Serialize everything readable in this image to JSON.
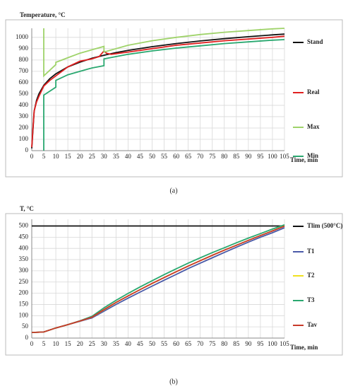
{
  "chart_data": [
    {
      "type": "line",
      "caption": "(a)",
      "y_label": "Temperature, °C",
      "x_label": "Time, min",
      "xlim": [
        0,
        105
      ],
      "xticks": [
        0,
        5,
        10,
        15,
        20,
        25,
        30,
        35,
        40,
        45,
        50,
        55,
        60,
        65,
        70,
        75,
        80,
        85,
        90,
        95,
        100,
        105
      ],
      "ylim": [
        0,
        1080
      ],
      "yticks": [
        0,
        100,
        200,
        300,
        400,
        500,
        600,
        700,
        800,
        900,
        1000
      ],
      "grid": true,
      "legend": "right",
      "series": [
        {
          "name": "Stand",
          "color": "#111111",
          "x": [
            0,
            1,
            2,
            3,
            5,
            7.5,
            10,
            15,
            20,
            25,
            30,
            35,
            40,
            50,
            60,
            70,
            80,
            90,
            100,
            105
          ],
          "values": [
            20,
            349,
            445,
            502,
            576,
            636,
            678,
            739,
            781,
            815,
            842,
            865,
            885,
            918,
            945,
            968,
            988,
            1006,
            1022,
            1029
          ]
        },
        {
          "name": "Real",
          "color": "#e02020",
          "x": [
            0,
            0.5,
            1,
            2,
            3,
            5,
            7.5,
            10,
            15,
            20,
            25,
            28,
            30,
            31,
            33,
            40,
            50,
            60,
            70,
            80,
            90,
            100,
            105
          ],
          "values": [
            30,
            200,
            350,
            430,
            480,
            570,
            620,
            660,
            740,
            790,
            810,
            830,
            880,
            860,
            850,
            870,
            900,
            930,
            950,
            970,
            985,
            1000,
            1010
          ]
        },
        {
          "name": "Max",
          "color": "#9fd36a",
          "x": [
            5,
            5,
            10,
            10,
            15,
            20,
            25,
            30,
            30,
            40,
            50,
            60,
            70,
            80,
            90,
            100,
            105
          ],
          "values": [
            1080,
            660,
            760,
            780,
            820,
            860,
            890,
            920,
            870,
            930,
            970,
            1000,
            1025,
            1045,
            1060,
            1075,
            1080
          ]
        },
        {
          "name": "Min",
          "color": "#2aa870",
          "x": [
            5,
            5,
            10,
            10,
            15,
            20,
            25,
            30,
            30,
            40,
            50,
            60,
            70,
            80,
            90,
            100,
            105
          ],
          "values": [
            0,
            490,
            560,
            620,
            670,
            700,
            730,
            750,
            810,
            850,
            880,
            905,
            925,
            945,
            960,
            975,
            980
          ]
        }
      ]
    },
    {
      "type": "line",
      "caption": "(b)",
      "y_label": "T, °C",
      "x_label": "Time, min",
      "xlim": [
        0,
        105
      ],
      "xticks": [
        0,
        5,
        10,
        15,
        20,
        25,
        30,
        35,
        40,
        45,
        50,
        55,
        60,
        65,
        70,
        75,
        80,
        85,
        90,
        95,
        100,
        105
      ],
      "ylim": [
        0,
        530
      ],
      "yticks": [
        0,
        50,
        100,
        150,
        200,
        250,
        300,
        350,
        400,
        450,
        500
      ],
      "grid": true,
      "legend": "right",
      "series": [
        {
          "name": "Tlim (500°C)",
          "color": "#111111",
          "x": [
            0,
            105
          ],
          "values": [
            500,
            500
          ]
        },
        {
          "name": "T1",
          "color": "#4a5aa8",
          "x": [
            0,
            5,
            10,
            15,
            20,
            25,
            30,
            35,
            40,
            45,
            50,
            55,
            60,
            65,
            70,
            75,
            80,
            85,
            90,
            95,
            100,
            105
          ],
          "values": [
            25,
            27,
            45,
            60,
            75,
            90,
            120,
            150,
            178,
            205,
            232,
            258,
            284,
            310,
            334,
            358,
            382,
            405,
            428,
            450,
            470,
            492
          ]
        },
        {
          "name": "T2",
          "color": "#f0e020",
          "x": [
            0,
            5,
            10,
            15,
            20,
            25,
            30,
            35,
            40,
            45,
            50,
            55,
            60,
            65,
            70,
            75,
            80,
            85,
            90,
            95,
            100,
            105
          ],
          "values": [
            25,
            27,
            45,
            60,
            76,
            93,
            126,
            158,
            188,
            216,
            243,
            270,
            296,
            321,
            345,
            369,
            392,
            414,
            436,
            457,
            478,
            500
          ]
        },
        {
          "name": "T3",
          "color": "#2aa870",
          "x": [
            0,
            5,
            10,
            15,
            20,
            25,
            30,
            35,
            40,
            45,
            50,
            55,
            60,
            65,
            70,
            75,
            80,
            85,
            90,
            95,
            100,
            105
          ],
          "values": [
            25,
            27,
            45,
            60,
            77,
            97,
            135,
            168,
            199,
            228,
            256,
            283,
            309,
            334,
            358,
            381,
            403,
            425,
            446,
            466,
            486,
            505
          ]
        },
        {
          "name": "Tav",
          "color": "#c83a2a",
          "x": [
            0,
            5,
            10,
            15,
            20,
            25,
            30,
            35,
            40,
            45,
            50,
            55,
            60,
            65,
            70,
            75,
            80,
            85,
            90,
            95,
            100,
            105
          ],
          "values": [
            25,
            27,
            45,
            60,
            76,
            93,
            127,
            159,
            188,
            216,
            244,
            270,
            296,
            321,
            345,
            369,
            392,
            414,
            436,
            457,
            478,
            499
          ]
        }
      ]
    }
  ]
}
